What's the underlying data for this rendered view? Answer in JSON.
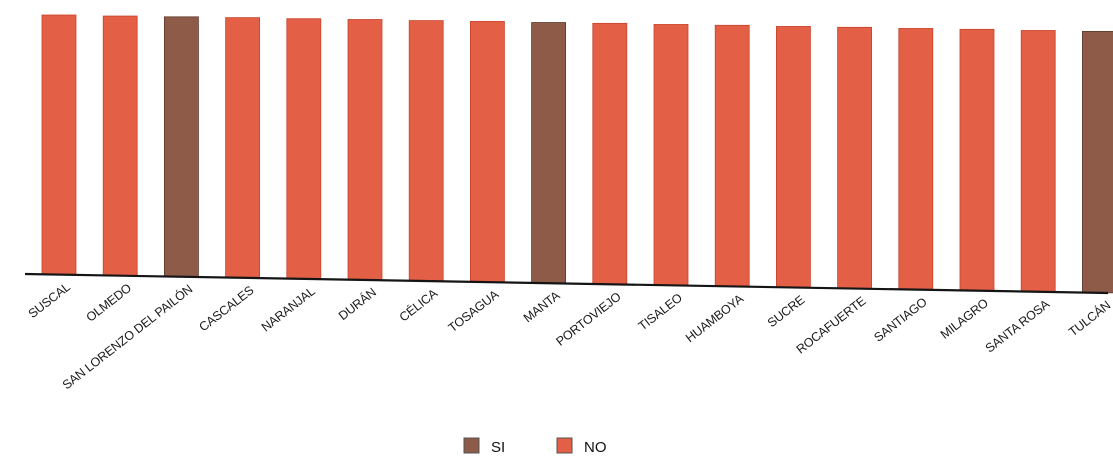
{
  "chart_data": {
    "type": "bar",
    "title": "",
    "xlabel": "",
    "ylabel": "",
    "categories": [
      "SUSCAL",
      "OLMEDO",
      "SAN LORENZO DEL PAILÓN",
      "CASCALES",
      "NARANJAL",
      "DURÁN",
      "CÉLICA",
      "TOSAGUA",
      "MANTA",
      "PORTOVIEJO",
      "TISALEO",
      "HUAMBOYA",
      "SUCRE",
      "ROCAFUERTE",
      "SANTIAGO",
      "MILAGRO",
      "SANTA ROSA",
      "TULCÁN"
    ],
    "values": [
      100,
      99.6,
      99.3,
      99,
      98.6,
      98.3,
      97.9,
      97.6,
      97.2,
      96.9,
      96.5,
      96.2,
      95.8,
      95.5,
      95.1,
      94.8,
      94.4,
      94.1
    ],
    "group": [
      "NO",
      "NO",
      "SI",
      "NO",
      "NO",
      "NO",
      "NO",
      "NO",
      "SI",
      "NO",
      "NO",
      "NO",
      "NO",
      "NO",
      "NO",
      "NO",
      "NO",
      "SI"
    ],
    "ylim": [
      0,
      100
    ],
    "grid": false,
    "legend": {
      "placement": "bottom-center",
      "entries": [
        {
          "label": "SI",
          "color": "#8d5b48"
        },
        {
          "label": "NO",
          "color": "#e35f45"
        }
      ]
    }
  }
}
